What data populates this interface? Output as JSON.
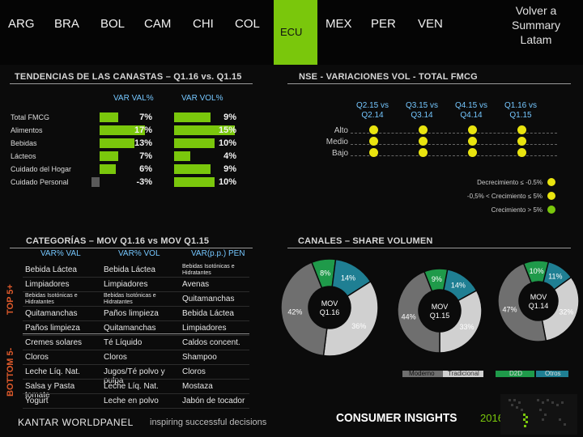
{
  "nav": {
    "tabs": [
      "ARG",
      "BRA",
      "BOL",
      "CAM",
      "CHI",
      "COL"
    ],
    "active": "ECU",
    "tabs_right": [
      "MEX",
      "PER",
      "VEN"
    ],
    "summary_label": "Volver a Summary Latam",
    "active_color": "#7ac70c"
  },
  "tendencias": {
    "title": "TENDENCIAS DE LAS CANASTAS – Q1.16 vs. Q1.15",
    "col1": "VAR VAL%",
    "col2": "VAR VOL%",
    "rows": [
      {
        "label": "Total FMCG",
        "val": "7%",
        "vol": "9%",
        "val_n": 7,
        "vol_n": 9
      },
      {
        "label": "Alimentos",
        "val": "17%",
        "vol": "15%",
        "val_n": 17,
        "vol_n": 15
      },
      {
        "label": "Bebidas",
        "val": "13%",
        "vol": "10%",
        "val_n": 13,
        "vol_n": 10
      },
      {
        "label": "Lácteos",
        "val": "7%",
        "vol": "4%",
        "val_n": 7,
        "vol_n": 4
      },
      {
        "label": "Cuidado del Hogar",
        "val": "6%",
        "vol": "9%",
        "val_n": 6,
        "vol_n": 9
      },
      {
        "label": "Cuidado Personal",
        "val": "-3%",
        "vol": "10%",
        "val_n": -3,
        "vol_n": 10
      }
    ]
  },
  "nse": {
    "title": "NSE - VARIACIONES VOL - TOTAL FMCG",
    "cols": [
      "Q2.15 vs Q2.14",
      "Q3.15 vs Q3.14",
      "Q4.15 vs Q4.14",
      "Q1.16 vs Q1.15"
    ],
    "rows": [
      "Alto",
      "Medio",
      "Bajo"
    ],
    "dot_color": "#e9e40f",
    "legend": [
      "Decrecimiento ≤ -0.5%",
      "-0,5% < Crecimiento ≤ 5%",
      "Crecimiento > 5%"
    ],
    "legend_colors": [
      "#e9e40f",
      "#e9e40f",
      "#7ac70c"
    ]
  },
  "categorias": {
    "title": "CATEGORÍAS – MOV Q1.16 vs MOV Q1.15",
    "headers": [
      "VAR% VAL",
      "VAR% VOL",
      "VAR(p.p.) PEN"
    ],
    "top_label": "TOP 5+",
    "bottom_label": "BOTTOM 5-",
    "top": [
      [
        "Bebida Láctea",
        "Bebida Láctea",
        "Bebidas Isotónicas e Hidratantes"
      ],
      [
        "Limpiadores",
        "Limpiadores",
        "Avenas"
      ],
      [
        "Bebidas Isotónicas e Hidratantes",
        "Bebidas Isotónicas e Hidratantes",
        "Quitamanchas"
      ],
      [
        "Quitamanchas",
        "Paños limpieza",
        "Bebida Láctea"
      ],
      [
        "Paños limpieza",
        "Quitamanchas",
        "Limpiadores"
      ]
    ],
    "bottom": [
      [
        "Cremes solares",
        "Té Líquido",
        "Caldos concent."
      ],
      [
        "Cloros",
        "Cloros",
        "Shampoo"
      ],
      [
        "Leche Líq. Nat.",
        "Jugos/Té polvo y pulpa",
        "Cloros"
      ],
      [
        "Salsa y Pasta tomate",
        "Leche Líq. Nat.",
        "Mostaza"
      ],
      [
        "Yogurt",
        "Leche en polvo",
        "Jabón de tocador"
      ]
    ]
  },
  "canales": {
    "title": "CANALES – SHARE VOLUMEN",
    "donuts": [
      {
        "center": [
          "MOV",
          "Q1.16"
        ],
        "segments": [
          {
            "name": "D2D",
            "value": 8
          },
          {
            "name": "Otros",
            "value": 14
          },
          {
            "name": "Tradicional",
            "value": 36
          },
          {
            "name": "Moderno",
            "value": 42
          }
        ],
        "labels": [
          "8%",
          "14%",
          "36%",
          "42%"
        ]
      },
      {
        "center": [
          "MOV",
          "Q1.15"
        ],
        "segments": [
          {
            "name": "D2D",
            "value": 9
          },
          {
            "name": "Otros",
            "value": 14
          },
          {
            "name": "Tradicional",
            "value": 33
          },
          {
            "name": "Moderno",
            "value": 44
          }
        ],
        "labels": [
          "9%",
          "14%",
          "33%",
          "44%"
        ]
      },
      {
        "center": [
          "MOV",
          "Q1.14"
        ],
        "segments": [
          {
            "name": "D2D",
            "value": 10
          },
          {
            "name": "Otros",
            "value": 11
          },
          {
            "name": "Tradicional",
            "value": 32
          },
          {
            "name": "Moderno",
            "value": 47
          }
        ],
        "labels": [
          "10%",
          "11%",
          "32%",
          "47%"
        ]
      }
    ],
    "legend": [
      "Moderno",
      "Tradicional",
      "D2D",
      "Otros"
    ],
    "colors": {
      "Moderno": "#6f6f6f",
      "Tradicional": "#d0d0d0",
      "D2D": "#1f9a4a",
      "Otros": "#1f7f93"
    }
  },
  "footer": {
    "kantar": "KANTAR WORLDPANEL",
    "tagline": "inspiring successful decisions",
    "ci": "CONSUMER INSIGHTS",
    "year": "2016"
  }
}
